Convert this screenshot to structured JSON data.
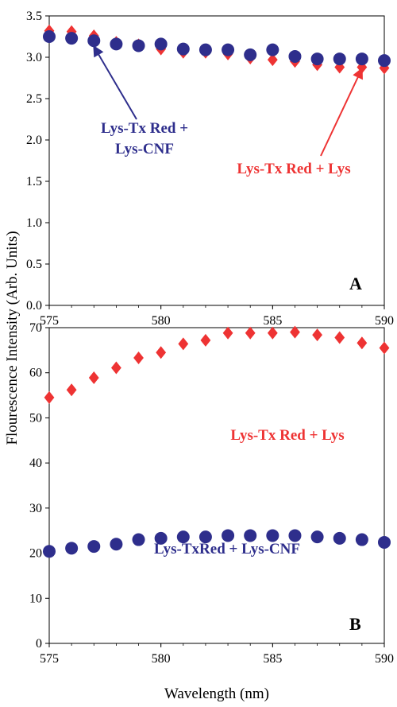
{
  "figure": {
    "ylabel": "Flourescence Intensity (Arb. Units)",
    "xlabel": "Wavelength (nm)"
  },
  "chart_data": [
    {
      "type": "scatter",
      "panel_label": "A",
      "xlim": [
        575,
        590
      ],
      "ylim": [
        0,
        3.5
      ],
      "x_ticks": [
        "575",
        "580",
        "585",
        "590"
      ],
      "y_ticks": [
        "0.0",
        "0.5",
        "1.0",
        "1.5",
        "2.0",
        "2.5",
        "3.0",
        "3.5"
      ],
      "grid": false,
      "series": [
        {
          "name": "Lys-Tx Red + Lys",
          "marker": "diamond",
          "color": "#ee3333",
          "x": [
            575,
            576,
            577,
            578,
            579,
            580,
            581,
            582,
            583,
            584,
            585,
            586,
            587,
            588,
            589,
            590
          ],
          "y": [
            3.32,
            3.31,
            3.26,
            3.18,
            3.15,
            3.1,
            3.06,
            3.06,
            3.04,
            2.99,
            2.97,
            2.95,
            2.91,
            2.88,
            2.88,
            2.87
          ]
        },
        {
          "name": "Lys-Tx Red + Lys-CNF",
          "marker": "circle",
          "color": "#2e2e8c",
          "x": [
            575,
            576,
            577,
            578,
            579,
            580,
            581,
            582,
            583,
            584,
            585,
            586,
            587,
            588,
            589,
            590
          ],
          "y": [
            3.25,
            3.23,
            3.2,
            3.16,
            3.14,
            3.16,
            3.1,
            3.09,
            3.09,
            3.03,
            3.09,
            3.01,
            2.98,
            2.98,
            2.98,
            2.96
          ]
        }
      ],
      "annotations": [
        {
          "lines": [
            "Lys-Tx Red +",
            "Lys-CNF"
          ],
          "color": "#2e2e8c"
        },
        {
          "lines": [
            "Lys-Tx Red + Lys"
          ],
          "color": "#ee3333"
        }
      ]
    },
    {
      "type": "scatter",
      "panel_label": "B",
      "xlim": [
        575,
        590
      ],
      "ylim": [
        0,
        70
      ],
      "x_ticks": [
        "575",
        "580",
        "585",
        "590"
      ],
      "y_ticks": [
        "0",
        "10",
        "20",
        "30",
        "40",
        "50",
        "60",
        "70"
      ],
      "grid": false,
      "series": [
        {
          "name": "Lys-Tx Red + Lys",
          "marker": "diamond",
          "color": "#ee3333",
          "x": [
            575,
            576,
            577,
            578,
            579,
            580,
            581,
            582,
            583,
            584,
            585,
            586,
            587,
            588,
            589,
            590
          ],
          "y": [
            54.5,
            56.2,
            58.9,
            61.1,
            63.3,
            64.5,
            66.4,
            67.2,
            68.8,
            68.8,
            68.8,
            69.0,
            68.4,
            67.8,
            66.6,
            65.5
          ]
        },
        {
          "name": "Lys-TxRed + Lys-CNF",
          "marker": "circle",
          "color": "#2e2e8c",
          "x": [
            575,
            576,
            577,
            578,
            579,
            580,
            581,
            582,
            583,
            584,
            585,
            586,
            587,
            588,
            589,
            590
          ],
          "y": [
            20.4,
            21.1,
            21.5,
            22.0,
            23.0,
            23.3,
            23.6,
            23.6,
            23.9,
            23.9,
            23.9,
            23.9,
            23.6,
            23.3,
            23.0,
            22.4
          ]
        }
      ],
      "annotations": [
        {
          "lines": [
            "Lys-Tx Red + Lys"
          ],
          "color": "#ee3333"
        },
        {
          "lines": [
            "Lys-TxRed + Lys-CNF"
          ],
          "color": "#2e2e8c"
        }
      ]
    }
  ]
}
